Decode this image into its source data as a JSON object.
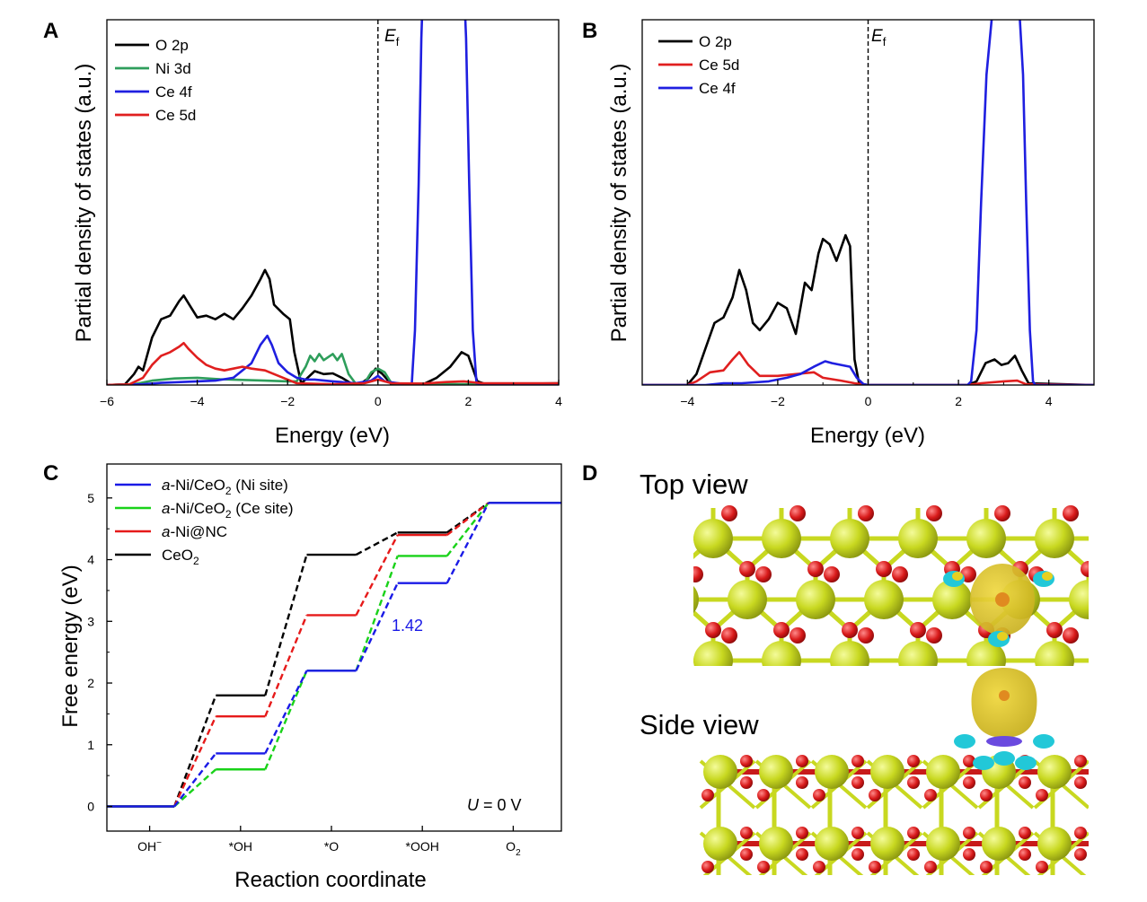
{
  "panels": {
    "A": {
      "letter": "A"
    },
    "B": {
      "letter": "B"
    },
    "C": {
      "letter": "C"
    },
    "D": {
      "letter": "D",
      "top_view": "Top view",
      "side_view": "Side view"
    }
  },
  "fermi_label": {
    "main": "E",
    "sub": "f"
  },
  "colors": {
    "o2p": "#000000",
    "ni3d": "#2e9e5b",
    "ce4f": "#1f1fe0",
    "ce5d": "#e01f1f",
    "ni_site": "#1a1ae6",
    "ce_site": "#19d219",
    "ni_nc": "#e61a1a",
    "ceo2": "#000000",
    "ce_atom": "#c8d820",
    "o_atom": "#d81a1a",
    "isosurface_yellow": "#e6d020",
    "isosurface_cyan": "#22c8d8"
  },
  "chart_data": [
    {
      "id": "A",
      "type": "line",
      "title": "",
      "xlabel": "Energy (eV)",
      "ylabel": "Partial density of states (a.u.)",
      "xlim": [
        -6,
        4
      ],
      "ylim": [
        0,
        10
      ],
      "xticks": [
        -6,
        -4,
        -2,
        0,
        2,
        4
      ],
      "xtick_labels": [
        "−6",
        "−4",
        "−2",
        "0",
        "2",
        "4"
      ],
      "fermi_level": 0,
      "legend": [
        "O 2p",
        "Ni 3d",
        "Ce 4f",
        "Ce 5d"
      ],
      "series": [
        {
          "name": "O 2p",
          "color": "#000000",
          "points": [
            [
              -6,
              0
            ],
            [
              -5.6,
              0.02
            ],
            [
              -5.4,
              0.3
            ],
            [
              -5.3,
              0.5
            ],
            [
              -5.2,
              0.4
            ],
            [
              -5.0,
              1.3
            ],
            [
              -4.8,
              1.8
            ],
            [
              -4.6,
              1.9
            ],
            [
              -4.4,
              2.3
            ],
            [
              -4.3,
              2.45
            ],
            [
              -4.2,
              2.25
            ],
            [
              -4.0,
              1.85
            ],
            [
              -3.8,
              1.9
            ],
            [
              -3.6,
              1.8
            ],
            [
              -3.4,
              1.95
            ],
            [
              -3.2,
              1.8
            ],
            [
              -3.0,
              2.1
            ],
            [
              -2.8,
              2.45
            ],
            [
              -2.6,
              2.9
            ],
            [
              -2.5,
              3.15
            ],
            [
              -2.4,
              2.9
            ],
            [
              -2.3,
              2.2
            ],
            [
              -2.1,
              1.95
            ],
            [
              -1.95,
              1.8
            ],
            [
              -1.85,
              0.9
            ],
            [
              -1.7,
              0.05
            ],
            [
              -1.6,
              0.15
            ],
            [
              -1.4,
              0.38
            ],
            [
              -1.2,
              0.3
            ],
            [
              -1.0,
              0.32
            ],
            [
              -0.8,
              0.2
            ],
            [
              -0.6,
              0.05
            ],
            [
              -0.4,
              0.02
            ],
            [
              -0.2,
              0.2
            ],
            [
              -0.05,
              0.45
            ],
            [
              0.1,
              0.3
            ],
            [
              0.3,
              0.02
            ],
            [
              1.0,
              0.02
            ],
            [
              1.3,
              0.2
            ],
            [
              1.6,
              0.5
            ],
            [
              1.85,
              0.9
            ],
            [
              2.0,
              0.8
            ],
            [
              2.2,
              0.1
            ],
            [
              2.4,
              0.02
            ],
            [
              4,
              0.05
            ]
          ]
        },
        {
          "name": "Ni 3d",
          "color": "#2e9e5b",
          "points": [
            [
              -6,
              0
            ],
            [
              -5.4,
              0.02
            ],
            [
              -5.0,
              0.12
            ],
            [
              -4.5,
              0.18
            ],
            [
              -4.0,
              0.2
            ],
            [
              -3.5,
              0.16
            ],
            [
              -3.0,
              0.14
            ],
            [
              -2.5,
              0.12
            ],
            [
              -2.0,
              0.1
            ],
            [
              -1.8,
              0.1
            ],
            [
              -1.6,
              0.5
            ],
            [
              -1.5,
              0.8
            ],
            [
              -1.4,
              0.65
            ],
            [
              -1.3,
              0.85
            ],
            [
              -1.2,
              0.68
            ],
            [
              -1.0,
              0.85
            ],
            [
              -0.9,
              0.68
            ],
            [
              -0.8,
              0.85
            ],
            [
              -0.65,
              0.3
            ],
            [
              -0.5,
              0.05
            ],
            [
              -0.3,
              0.05
            ],
            [
              -0.15,
              0.35
            ],
            [
              0.0,
              0.45
            ],
            [
              0.15,
              0.35
            ],
            [
              0.3,
              0.05
            ],
            [
              0.6,
              0.04
            ],
            [
              1.0,
              0.04
            ],
            [
              1.4,
              0.03
            ],
            [
              2.0,
              0.02
            ],
            [
              4,
              0.02
            ]
          ]
        },
        {
          "name": "Ce 4f",
          "color": "#1f1fe0",
          "points": [
            [
              -6,
              0
            ],
            [
              -5.2,
              0.02
            ],
            [
              -4.8,
              0.06
            ],
            [
              -4.0,
              0.1
            ],
            [
              -3.6,
              0.12
            ],
            [
              -3.2,
              0.2
            ],
            [
              -3.0,
              0.4
            ],
            [
              -2.8,
              0.6
            ],
            [
              -2.6,
              1.1
            ],
            [
              -2.45,
              1.35
            ],
            [
              -2.35,
              1.1
            ],
            [
              -2.2,
              0.6
            ],
            [
              -2.0,
              0.35
            ],
            [
              -1.8,
              0.2
            ],
            [
              -1.6,
              0.15
            ],
            [
              -1.4,
              0.15
            ],
            [
              -1.0,
              0.1
            ],
            [
              -0.5,
              0.05
            ],
            [
              -0.15,
              0.12
            ],
            [
              0.0,
              0.25
            ],
            [
              0.15,
              0.1
            ],
            [
              0.6,
              0.02
            ],
            [
              0.75,
              0.05
            ],
            [
              0.82,
              1.5
            ],
            [
              0.9,
              5.5
            ],
            [
              0.96,
              9.5
            ],
            [
              1.0,
              11
            ],
            [
              1.9,
              11
            ],
            [
              1.95,
              9.5
            ],
            [
              2.02,
              5.5
            ],
            [
              2.1,
              1.5
            ],
            [
              2.18,
              0.05
            ],
            [
              2.5,
              0.02
            ],
            [
              4,
              0
            ]
          ]
        },
        {
          "name": "Ce 5d",
          "color": "#e01f1f",
          "points": [
            [
              -6,
              0
            ],
            [
              -5.5,
              0.02
            ],
            [
              -5.2,
              0.2
            ],
            [
              -5.0,
              0.55
            ],
            [
              -4.8,
              0.8
            ],
            [
              -4.6,
              0.9
            ],
            [
              -4.4,
              1.05
            ],
            [
              -4.3,
              1.15
            ],
            [
              -4.2,
              1.0
            ],
            [
              -4.0,
              0.75
            ],
            [
              -3.8,
              0.55
            ],
            [
              -3.6,
              0.45
            ],
            [
              -3.4,
              0.4
            ],
            [
              -3.2,
              0.45
            ],
            [
              -3.0,
              0.5
            ],
            [
              -2.8,
              0.45
            ],
            [
              -2.5,
              0.4
            ],
            [
              -2.3,
              0.3
            ],
            [
              -2.0,
              0.15
            ],
            [
              -1.8,
              0.05
            ],
            [
              -1.0,
              0.02
            ],
            [
              -0.3,
              0.05
            ],
            [
              0.0,
              0.15
            ],
            [
              0.3,
              0.05
            ],
            [
              1.0,
              0.04
            ],
            [
              1.5,
              0.08
            ],
            [
              1.9,
              0.1
            ],
            [
              2.3,
              0.05
            ],
            [
              4,
              0.05
            ]
          ]
        }
      ]
    },
    {
      "id": "B",
      "type": "line",
      "title": "",
      "xlabel": "Energy (eV)",
      "ylabel": "Partial density of states (a.u.)",
      "xlim": [
        -5,
        5
      ],
      "ylim": [
        0,
        10
      ],
      "xticks": [
        -4,
        -2,
        0,
        2,
        4
      ],
      "xtick_labels": [
        "−4",
        "−2",
        "0",
        "2",
        "4"
      ],
      "fermi_level": 0,
      "legend": [
        "O 2p",
        "Ce 5d",
        "Ce 4f"
      ],
      "series": [
        {
          "name": "O 2p",
          "color": "#000000",
          "points": [
            [
              -5,
              0
            ],
            [
              -4.0,
              0
            ],
            [
              -3.8,
              0.3
            ],
            [
              -3.6,
              1.0
            ],
            [
              -3.4,
              1.7
            ],
            [
              -3.2,
              1.85
            ],
            [
              -3.0,
              2.4
            ],
            [
              -2.85,
              3.15
            ],
            [
              -2.7,
              2.6
            ],
            [
              -2.55,
              1.7
            ],
            [
              -2.4,
              1.5
            ],
            [
              -2.2,
              1.8
            ],
            [
              -2.0,
              2.25
            ],
            [
              -1.8,
              2.1
            ],
            [
              -1.6,
              1.4
            ],
            [
              -1.4,
              2.8
            ],
            [
              -1.25,
              2.6
            ],
            [
              -1.1,
              3.6
            ],
            [
              -1.0,
              4.0
            ],
            [
              -0.85,
              3.85
            ],
            [
              -0.7,
              3.4
            ],
            [
              -0.5,
              4.1
            ],
            [
              -0.4,
              3.8
            ],
            [
              -0.3,
              0.7
            ],
            [
              -0.2,
              0.05
            ],
            [
              0,
              0
            ],
            [
              2.2,
              0
            ],
            [
              2.4,
              0.1
            ],
            [
              2.6,
              0.6
            ],
            [
              2.8,
              0.7
            ],
            [
              2.95,
              0.55
            ],
            [
              3.1,
              0.6
            ],
            [
              3.25,
              0.8
            ],
            [
              3.4,
              0.4
            ],
            [
              3.55,
              0.05
            ],
            [
              5,
              0
            ]
          ]
        },
        {
          "name": "Ce 5d",
          "color": "#e01f1f",
          "points": [
            [
              -5,
              0
            ],
            [
              -4.0,
              0
            ],
            [
              -3.8,
              0.1
            ],
            [
              -3.5,
              0.35
            ],
            [
              -3.2,
              0.4
            ],
            [
              -3.0,
              0.7
            ],
            [
              -2.85,
              0.9
            ],
            [
              -2.65,
              0.55
            ],
            [
              -2.4,
              0.25
            ],
            [
              -2.0,
              0.25
            ],
            [
              -1.6,
              0.3
            ],
            [
              -1.2,
              0.35
            ],
            [
              -1.0,
              0.2
            ],
            [
              -0.6,
              0.12
            ],
            [
              -0.3,
              0.05
            ],
            [
              0,
              0
            ],
            [
              2.2,
              0
            ],
            [
              2.5,
              0.05
            ],
            [
              3.0,
              0.1
            ],
            [
              3.3,
              0.12
            ],
            [
              3.5,
              0.02
            ],
            [
              5,
              0
            ]
          ]
        },
        {
          "name": "Ce 4f",
          "color": "#1f1fe0",
          "points": [
            [
              -5,
              0
            ],
            [
              -3.6,
              0
            ],
            [
              -3.2,
              0.05
            ],
            [
              -2.8,
              0.05
            ],
            [
              -2.2,
              0.1
            ],
            [
              -1.8,
              0.2
            ],
            [
              -1.5,
              0.3
            ],
            [
              -1.2,
              0.5
            ],
            [
              -0.95,
              0.65
            ],
            [
              -0.8,
              0.6
            ],
            [
              -0.6,
              0.55
            ],
            [
              -0.4,
              0.5
            ],
            [
              -0.25,
              0.2
            ],
            [
              -0.1,
              0.02
            ],
            [
              0,
              0
            ],
            [
              2.2,
              0
            ],
            [
              2.28,
              0.1
            ],
            [
              2.4,
              1.5
            ],
            [
              2.5,
              5.0
            ],
            [
              2.62,
              8.5
            ],
            [
              2.75,
              10.2
            ],
            [
              2.8,
              11
            ],
            [
              3.3,
              11
            ],
            [
              3.35,
              10.2
            ],
            [
              3.43,
              8.5
            ],
            [
              3.5,
              5.0
            ],
            [
              3.58,
              1.5
            ],
            [
              3.65,
              0.1
            ],
            [
              3.7,
              0
            ],
            [
              5,
              0
            ]
          ]
        }
      ]
    },
    {
      "id": "C",
      "type": "line",
      "title": "",
      "xlabel": "Reaction coordinate",
      "ylabel": "Free energy (eV)",
      "ylim": [
        -0.4,
        5.55
      ],
      "yticks": [
        0,
        1,
        2,
        3,
        4,
        5
      ],
      "categories": [
        "OH⁻",
        "*OH",
        "*O",
        "*OOH",
        "O2"
      ],
      "category_labels": [
        {
          "main": "OH",
          "sup": "−"
        },
        {
          "main": "*OH"
        },
        {
          "main": "*O"
        },
        {
          "main": "*OOH"
        },
        {
          "main": "O",
          "sub": "2"
        }
      ],
      "annotation": {
        "text": "1.42",
        "color": "#1a1ae6"
      },
      "condition": {
        "italic": "U",
        "rest": " = 0 V"
      },
      "series": [
        {
          "name": "a-Ni/CeO2 (Ni site)",
          "legend": {
            "italic": "a",
            "main": "-Ni/CeO",
            "sub": "2",
            "rest": " (Ni site)"
          },
          "color": "#1a1ae6",
          "values": [
            0,
            0.86,
            2.2,
            3.62,
            4.92
          ]
        },
        {
          "name": "a-Ni/CeO2 (Ce site)",
          "legend": {
            "italic": "a",
            "main": "-Ni/CeO",
            "sub": "2",
            "rest": " (Ce site)"
          },
          "color": "#19d219",
          "values": [
            0,
            0.6,
            2.2,
            4.06,
            4.92
          ]
        },
        {
          "name": "a-Ni@NC",
          "legend": {
            "italic": "a",
            "main": "-Ni@NC",
            "sub": "",
            "rest": ""
          },
          "color": "#e61a1a",
          "values": [
            0,
            1.46,
            3.1,
            4.4,
            4.92
          ]
        },
        {
          "name": "CeO2",
          "legend": {
            "italic": "",
            "main": "CeO",
            "sub": "2",
            "rest": ""
          },
          "color": "#000000",
          "values": [
            0,
            1.8,
            4.08,
            4.44,
            4.92
          ]
        }
      ]
    }
  ]
}
